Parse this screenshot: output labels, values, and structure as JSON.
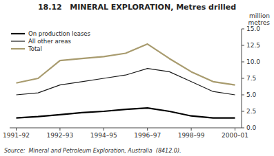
{
  "chart_data": {
    "type": "line",
    "title": "18.12   MINERAL EXPLORATION, Metres drilled",
    "ylabel": "million\nmetres",
    "source": "Source:  Mineral and Petroleum Exploration, Australia  (8412.0).",
    "categories": [
      "1991–92",
      null,
      "1992–93",
      null,
      "1994–95",
      null,
      "1996–97",
      null,
      "1998–99",
      null,
      "2000–01"
    ],
    "series": [
      {
        "name": "On production leases",
        "color": "#000000",
        "values": [
          1.5,
          1.7,
          2.0,
          2.3,
          2.5,
          2.8,
          3.0,
          2.5,
          1.8,
          1.5,
          1.5
        ]
      },
      {
        "name": "All other areas",
        "color": "#1a1a1a",
        "values": [
          5.0,
          5.3,
          6.5,
          7.0,
          7.5,
          8.0,
          9.0,
          8.5,
          7.0,
          5.5,
          5.0
        ]
      },
      {
        "name": "Total",
        "color": "#a89b6e",
        "values": [
          6.8,
          7.5,
          10.2,
          10.5,
          10.8,
          11.3,
          12.7,
          10.5,
          8.5,
          7.0,
          6.5
        ]
      }
    ],
    "ylim": [
      0,
      15.0
    ],
    "yticks": [
      {
        "value": 0.0,
        "label": "0.0"
      },
      2.5,
      {
        "value": 5.0,
        "label": "5.0"
      },
      {
        "value": 7.5,
        "label": "7.5"
      },
      {
        "value": 10.0,
        "label": "10.0"
      },
      12.5,
      {
        "value": 15.0,
        "label": "15.0"
      }
    ],
    "legend": "upper left",
    "grid": false
  }
}
